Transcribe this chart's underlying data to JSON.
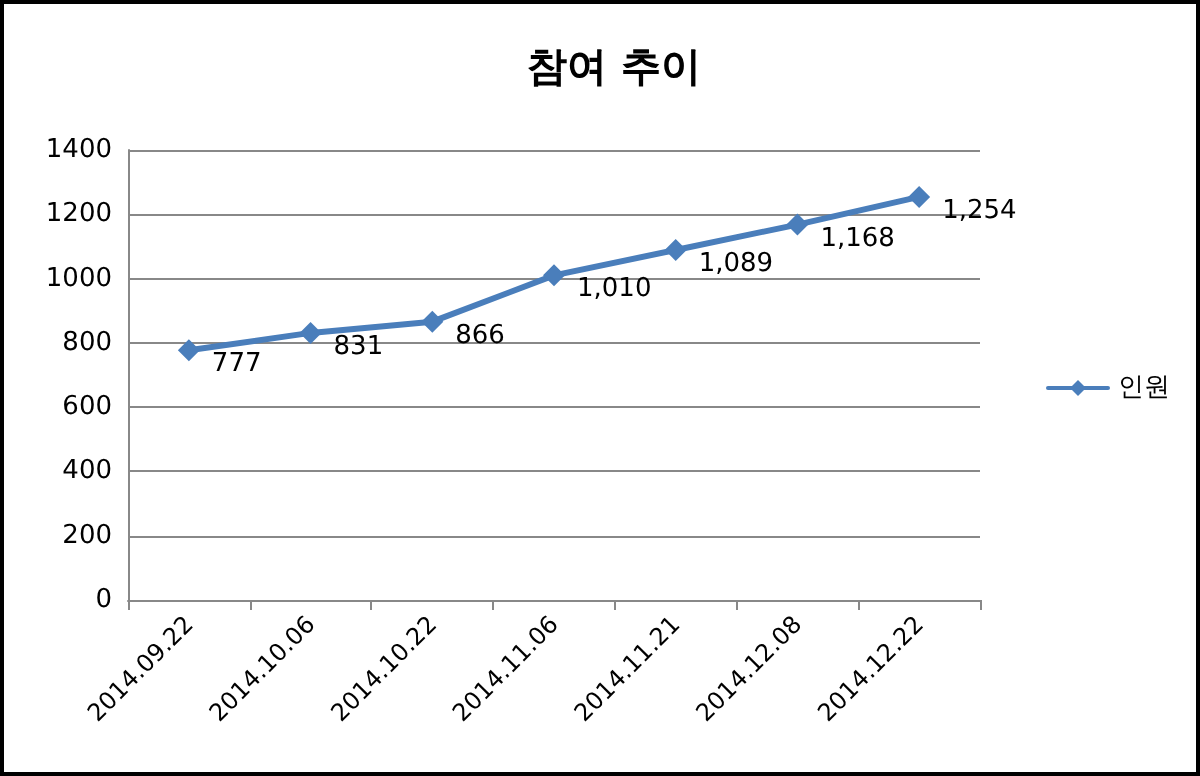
{
  "chart_data": {
    "type": "line",
    "title": "참여 추이",
    "categories": [
      "2014.09.22",
      "2014.10.06",
      "2014.10.22",
      "2014.11.06",
      "2014.11.21",
      "2014.12.08",
      "2014.12.22"
    ],
    "series": [
      {
        "name": "인원",
        "color": "#4a7ebb",
        "values": [
          777,
          831,
          866,
          1010,
          1089,
          1168,
          1254
        ],
        "value_labels": [
          "777",
          "831",
          "866",
          "1,010",
          "1,089",
          "1,168",
          "1,254"
        ]
      }
    ],
    "ylim": [
      0,
      1400
    ],
    "yticks": [
      0,
      200,
      400,
      600,
      800,
      1000,
      1200,
      1400
    ],
    "grid": "y",
    "legend": "right",
    "marker": "diamond",
    "line_style": "solid"
  }
}
